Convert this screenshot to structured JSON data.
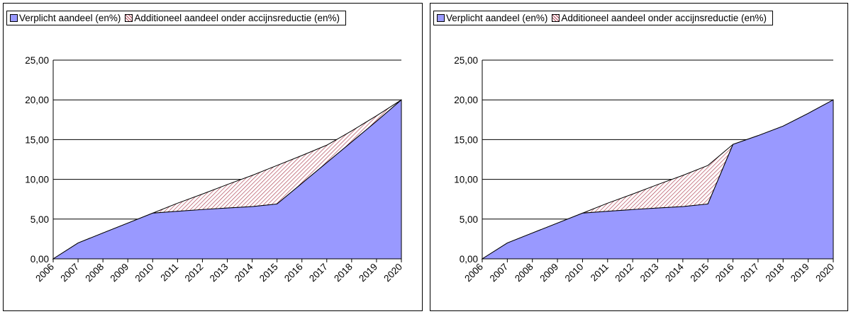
{
  "legend": {
    "series_required": "Verplicht aandeel (en%)",
    "series_additional": "Additioneel aandeel onder accijnsreductie (en%)"
  },
  "colors": {
    "required_fill": "#9999ff",
    "additional_hatch": "#b24a5a",
    "line": "#000000"
  },
  "chart_data": [
    {
      "type": "area",
      "x": [
        "2006",
        "2007",
        "2008",
        "2009",
        "2010",
        "2011",
        "2012",
        "2013",
        "2014",
        "2015",
        "2016",
        "2017",
        "2018",
        "2019",
        "2020"
      ],
      "ylim": [
        0,
        25
      ],
      "yticks": [
        "0,00",
        "5,00",
        "10,00",
        "15,00",
        "20,00",
        "25,00"
      ],
      "grid": true,
      "legend_position": "top-left",
      "series": [
        {
          "name": "Verplicht aandeel (en%)",
          "values": [
            0,
            2.0,
            3.25,
            4.5,
            5.75,
            5.98,
            6.2,
            6.4,
            6.57,
            6.9,
            9.5,
            12.1,
            14.7,
            17.3,
            20.0
          ]
        },
        {
          "name": "Additioneel aandeel onder accijnsreductie (en%)",
          "values": [
            0,
            0,
            0,
            0,
            0,
            1.02,
            1.95,
            2.95,
            3.93,
            4.85,
            3.5,
            2.2,
            1.4,
            0.7,
            0
          ]
        }
      ]
    },
    {
      "type": "area",
      "x": [
        "2006",
        "2007",
        "2008",
        "2009",
        "2010",
        "2011",
        "2012",
        "2013",
        "2014",
        "2015",
        "2016",
        "2017",
        "2018",
        "2019",
        "2020"
      ],
      "ylim": [
        0,
        25
      ],
      "yticks": [
        "0,00",
        "5,00",
        "10,00",
        "15,00",
        "20,00",
        "25,00"
      ],
      "grid": true,
      "legend_position": "top-left",
      "series": [
        {
          "name": "Verplicht aandeel (en%)",
          "values": [
            0,
            2.0,
            3.25,
            4.5,
            5.75,
            5.98,
            6.2,
            6.4,
            6.57,
            6.9,
            14.4,
            15.5,
            16.7,
            18.3,
            20.0
          ]
        },
        {
          "name": "Additioneel aandeel onder accijnsreductie (en%)",
          "values": [
            0,
            0,
            0,
            0,
            0,
            1.02,
            1.95,
            2.95,
            3.93,
            4.85,
            0,
            0,
            0,
            0,
            0
          ]
        }
      ]
    }
  ]
}
